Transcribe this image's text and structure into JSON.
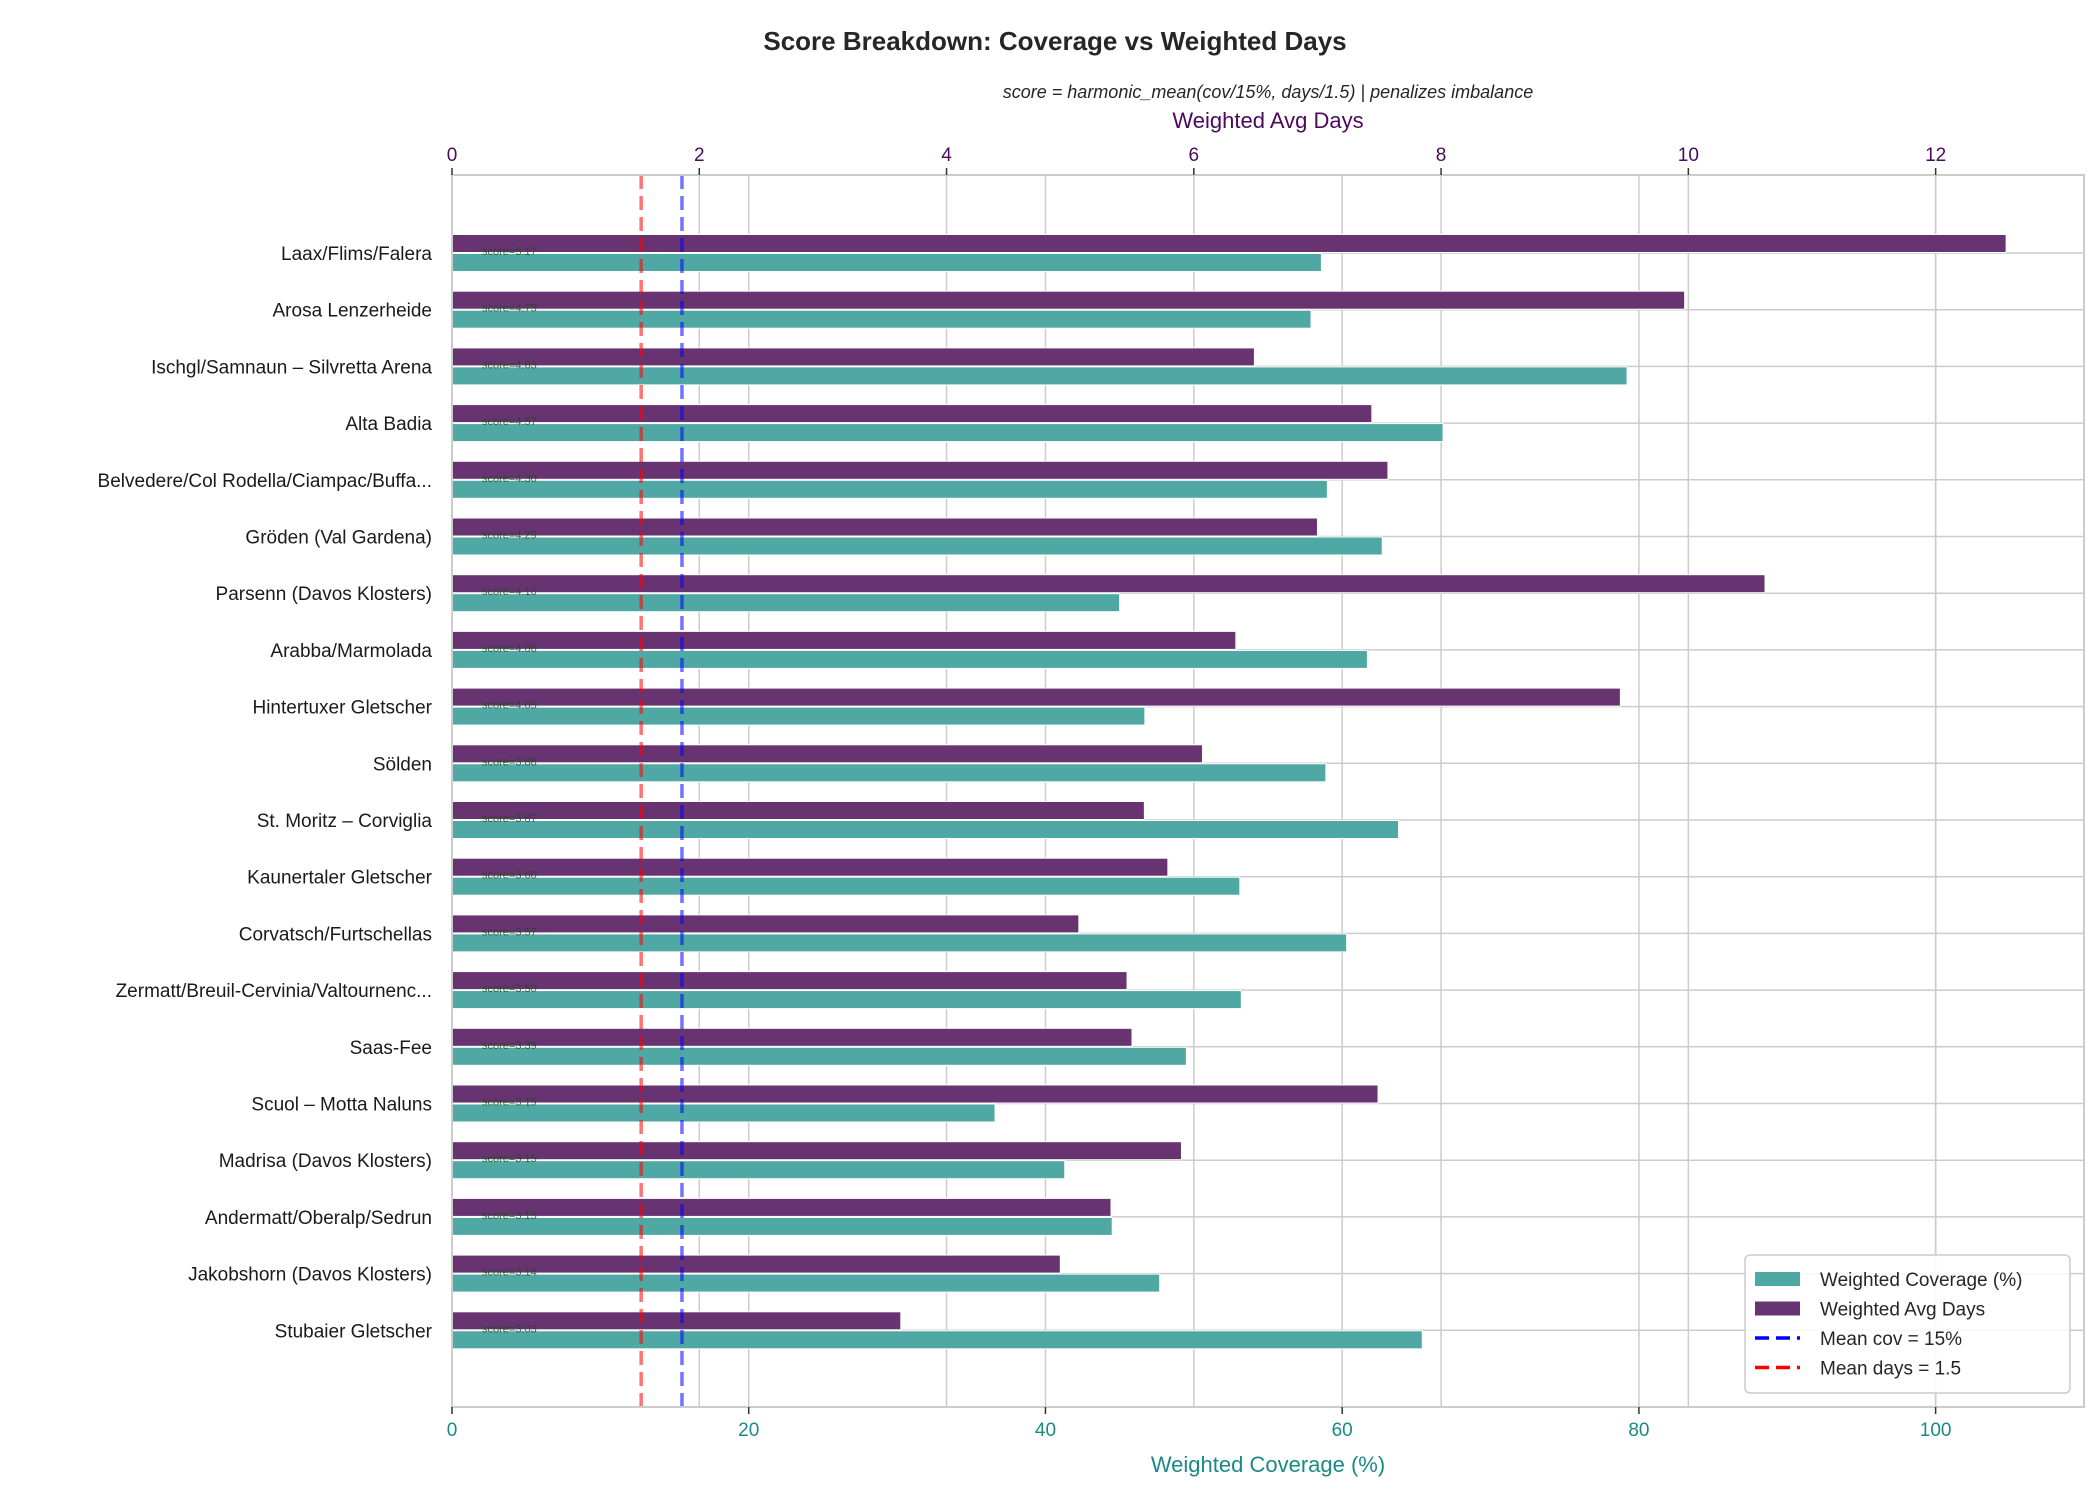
{
  "chart_data": {
    "type": "bar",
    "orientation": "horizontal",
    "title": "Score Breakdown: Coverage vs Weighted Days",
    "subtitle": "score = harmonic_mean(cov/15%, days/1.5) | penalizes imbalance",
    "xlabel": "Weighted Coverage (%)",
    "x2label": "Weighted Avg Days",
    "xlim": [
      0,
      110
    ],
    "x2lim": [
      0,
      13.2
    ],
    "xticks": [
      0,
      20,
      40,
      60,
      80,
      100
    ],
    "x2ticks": [
      0,
      2,
      4,
      6,
      8,
      10,
      12
    ],
    "grid": true,
    "legend_position": "bottom-right",
    "categories": [
      "Laax/Flims/Falera",
      "Arosa Lenzerheide",
      "Ischgl/Samnaun – Silvretta Arena",
      "Alta Badia",
      "Belvedere/Col Rodella/Ciampac/Buffa...",
      "Gröden (Val Gardena)",
      "Parsenn (Davos Klosters)",
      "Arabba/Marmolada",
      "Hintertuxer Gletscher",
      "Sölden",
      "St. Moritz – Corviglia",
      "Kaunertaler Gletscher",
      "Corvatsch/Furtschellas",
      "Zermatt/Breuil-Cervinia/Valtournenc...",
      "Saas-Fee",
      "Scuol – Motta Naluns",
      "Madrisa (Davos Klosters)",
      "Andermatt/Oberalp/Sedrun",
      "Jakobshorn (Davos Klosters)",
      "Stubaier Gletscher"
    ],
    "series": [
      {
        "name": "Weighted Coverage (%)",
        "axis": "bottom",
        "color": "#4fa8a3",
        "values": [
          58.6,
          57.9,
          79.2,
          66.8,
          59.0,
          62.7,
          45.0,
          61.7,
          46.7,
          58.9,
          63.8,
          53.1,
          60.3,
          53.2,
          49.5,
          36.6,
          41.3,
          44.5,
          47.7,
          65.4
        ]
      },
      {
        "name": "Weighted Avg Days",
        "axis": "top",
        "color": "#673370",
        "values": [
          12.57,
          9.97,
          6.49,
          7.44,
          7.57,
          7.0,
          10.62,
          6.34,
          9.45,
          6.07,
          5.6,
          5.79,
          5.07,
          5.46,
          5.5,
          7.49,
          5.9,
          5.33,
          4.92,
          3.63
        ]
      }
    ],
    "scores": [
      "score=5.17",
      "score=4.75",
      "score=4.63",
      "score=4.57",
      "score=4.30",
      "score=4.29",
      "score=4.10",
      "score=4.06",
      "score=4.05",
      "score=3.88",
      "score=3.87",
      "score=3.60",
      "score=3.57",
      "score=3.50",
      "score=3.39",
      "score=3.19",
      "score=3.15",
      "score=3.15",
      "score=3.14",
      "score=3.03"
    ],
    "reference_lines": [
      {
        "label": "Mean cov = 15%",
        "axis": "bottom",
        "value": 15.5,
        "color": "#0000ff"
      },
      {
        "label": "Mean days = 1.5",
        "axis": "top",
        "value": 1.53,
        "color": "#ff0000"
      }
    ],
    "colors": {
      "bottom_axis": "#1a8a85",
      "top_axis": "#4b0a5a"
    }
  }
}
